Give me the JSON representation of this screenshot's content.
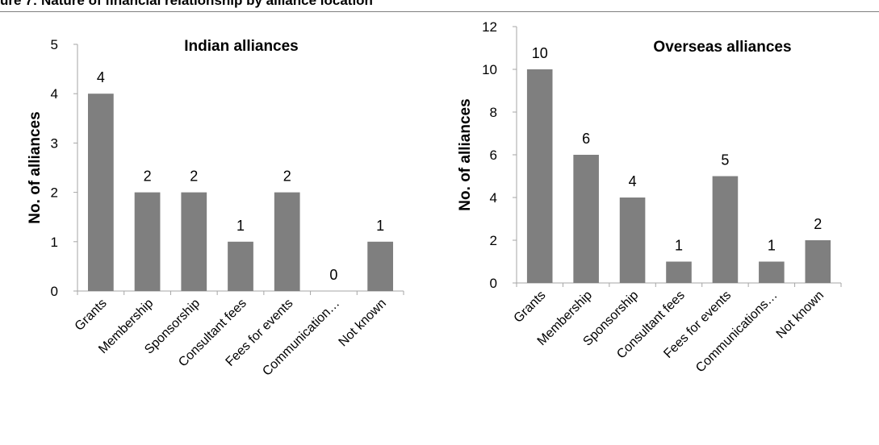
{
  "header": {
    "text": "ure 7: Nature of financial relationship by alliance location"
  },
  "colors": {
    "bar": "#7f7f7f",
    "axis": "#a6a6a6",
    "text": "#000000"
  },
  "chart_data": [
    {
      "type": "bar",
      "title": "Indian alliances",
      "ylabel": "No. of  alliances",
      "xlabel": "",
      "ylim": [
        0,
        5
      ],
      "yticks": [
        0,
        1,
        2,
        3,
        4,
        5
      ],
      "grid": false,
      "categories": [
        "Grants",
        "Membership",
        "Sponsorship",
        "Consultant fees",
        "Fees for events",
        "Communication…",
        "Not known"
      ],
      "values": [
        4,
        2,
        2,
        1,
        2,
        0,
        1
      ]
    },
    {
      "type": "bar",
      "title": "Overseas alliances",
      "ylabel": "No. of  alliances",
      "xlabel": "",
      "ylim": [
        0,
        12
      ],
      "yticks": [
        0,
        2,
        4,
        6,
        8,
        10,
        12
      ],
      "grid": false,
      "categories": [
        "Grants",
        "Membership",
        "Sponsorship",
        "Consultant fees",
        "Fees for events",
        "Communications…",
        "Not known"
      ],
      "values": [
        10,
        6,
        4,
        1,
        5,
        1,
        2
      ]
    }
  ]
}
